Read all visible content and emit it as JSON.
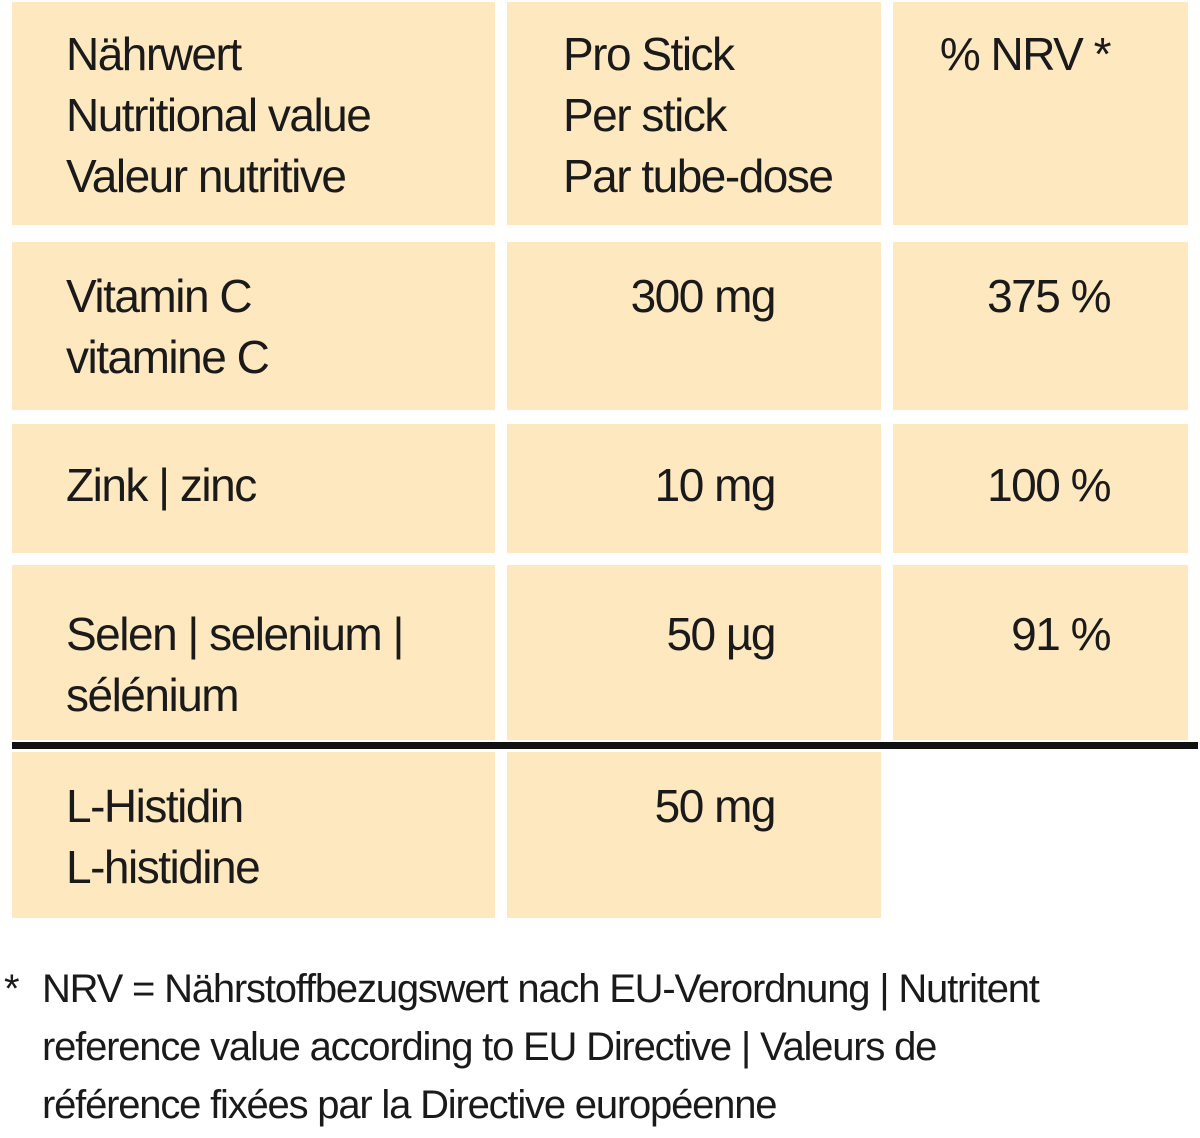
{
  "table": {
    "header": [
      [
        "Nährwert",
        "Nutritional value",
        "Valeur nutritive"
      ],
      [
        "Pro Stick",
        "Per stick",
        "Par tube-dose"
      ],
      [
        "% NRV *"
      ]
    ],
    "rows": [
      [
        [
          "Vitamin C",
          "vitamine C"
        ],
        [
          "300 mg"
        ],
        [
          "375 %"
        ]
      ],
      [
        [
          "Zink | zinc"
        ],
        [
          "10 mg"
        ],
        [
          "100 %"
        ]
      ],
      [
        [
          "Selen | selenium |",
          "sélénium"
        ],
        [
          "50 µg"
        ],
        [
          "91 %"
        ]
      ],
      [
        [
          "L-Histidin",
          "L-histidine"
        ],
        [
          "50 mg"
        ]
      ]
    ]
  },
  "footnote": {
    "marker": "*",
    "lines": [
      "NRV = Nährstoffbezugswert nach EU-Verordnung | Nutritent",
      "reference value according to EU Directive | Valeurs de",
      "référence fixées par la Directive européenne"
    ]
  }
}
